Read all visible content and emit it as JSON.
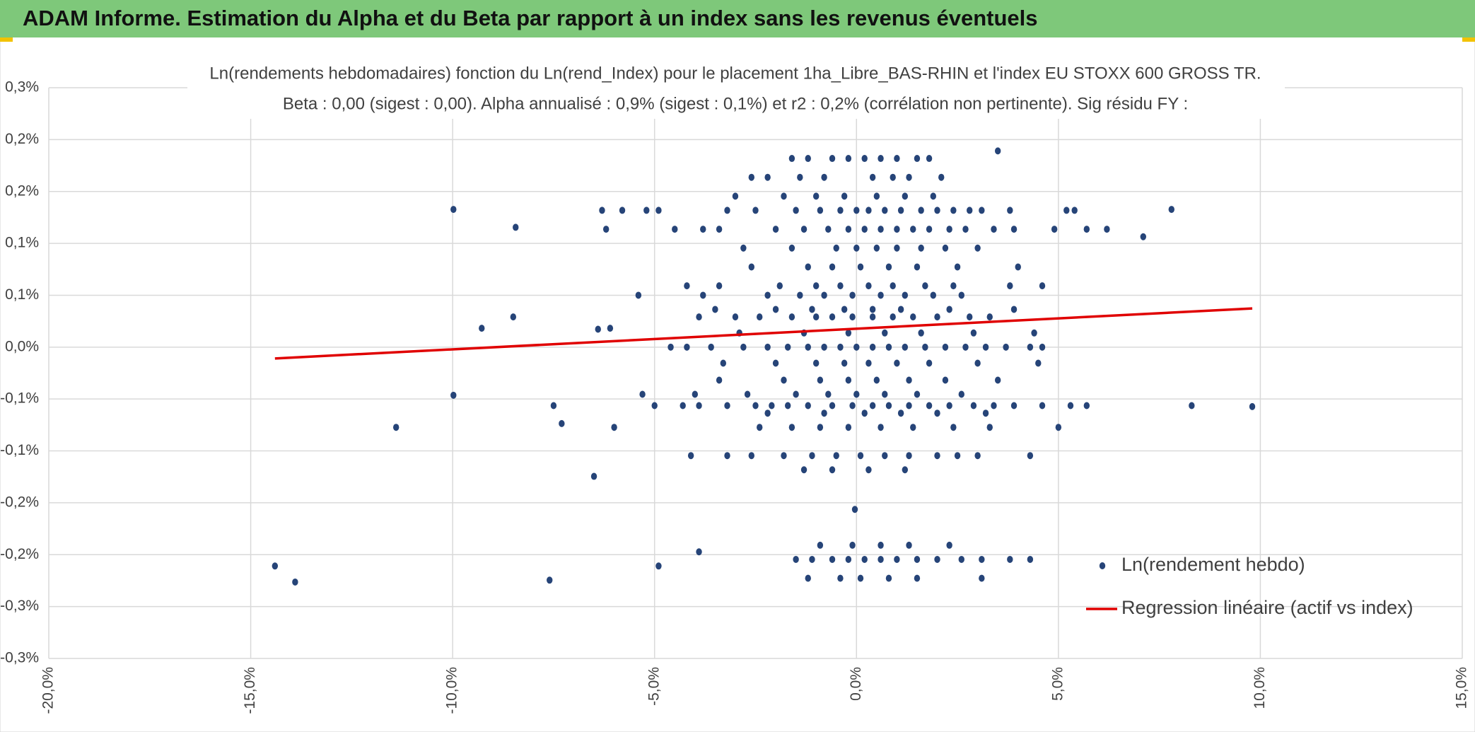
{
  "header": {
    "title": "ADAM Informe. Estimation du Alpha et du Beta par rapport à un index sans les revenus éventuels"
  },
  "chart_data": {
    "type": "scatter",
    "title": "Ln(rendements hebdomadaires) fonction du Ln(rend_Index) pour le placement 1ha_Libre_BAS-RHIN et l'index EU STOXX 600 GROSS TR.",
    "subtitle": "Beta : 0,00 (sigest : 0,00). Alpha annualisé : 0,9% (sigest : 0,1%) et r2 : 0,2% (corrélation non pertinente). Sig résidu FY :",
    "xlim": [
      -20,
      15
    ],
    "xticks": [
      {
        "value": -20,
        "label": "-20,0%"
      },
      {
        "value": -15,
        "label": "-15,0%"
      },
      {
        "value": -10,
        "label": "-10,0%"
      },
      {
        "value": -5,
        "label": "-5,0%"
      },
      {
        "value": 0,
        "label": "0,0%"
      },
      {
        "value": 5,
        "label": "5,0%"
      },
      {
        "value": 10,
        "label": "10,0%"
      },
      {
        "value": 15,
        "label": "15,0%"
      }
    ],
    "ylim": [
      -0.33,
      0.275
    ],
    "yticks": [
      {
        "value": 0.275,
        "label": "0,3%"
      },
      {
        "value": 0.22,
        "label": "0,2%"
      },
      {
        "value": 0.165,
        "label": "0,2%"
      },
      {
        "value": 0.11,
        "label": "0,1%"
      },
      {
        "value": 0.055,
        "label": "0,1%"
      },
      {
        "value": 0,
        "label": "0,0%"
      },
      {
        "value": -0.055,
        "label": "-0,1%"
      },
      {
        "value": -0.11,
        "label": "-0,1%"
      },
      {
        "value": -0.165,
        "label": "-0,2%"
      },
      {
        "value": -0.22,
        "label": "-0,2%"
      },
      {
        "value": -0.275,
        "label": "-0,3%"
      },
      {
        "value": -0.33,
        "label": "-0,3%"
      }
    ],
    "grid": true,
    "series": [
      {
        "name": "Ln(rendement hebdo)",
        "color": "#264478",
        "x": [
          -9.98,
          -8.44,
          -9.28,
          -8.5,
          -9.98,
          -11.4,
          -14.4,
          -13.9,
          -7.6,
          -6.5,
          -4.9,
          -3.9,
          -0.04,
          8.3,
          9.8,
          7.8,
          7.1,
          6.2,
          3.5,
          -6.4,
          -6.1,
          -5.4,
          -7.5,
          -7.3,
          -6.0,
          -5.3,
          -1.6,
          -1.2,
          -0.6,
          -0.2,
          0.2,
          0.6,
          1.0,
          1.5,
          1.8,
          -2.6,
          -2.2,
          -1.4,
          -0.8,
          0.4,
          0.9,
          1.3,
          2.1,
          -3.0,
          -1.8,
          -1.0,
          -0.3,
          0.5,
          1.2,
          1.9,
          -6.3,
          -5.8,
          -5.2,
          -4.9,
          -3.2,
          -2.5,
          -1.5,
          -0.9,
          -0.4,
          0,
          0.3,
          0.7,
          1.1,
          1.6,
          2.0,
          2.4,
          2.8,
          3.1,
          3.8,
          5.2,
          5.4,
          -6.2,
          -4.5,
          -3.8,
          -3.4,
          -2.0,
          -1.3,
          -0.7,
          -0.2,
          0.2,
          0.6,
          1.0,
          1.4,
          1.8,
          2.3,
          2.7,
          3.4,
          3.9,
          4.9,
          5.7,
          -2.8,
          -1.6,
          -0.5,
          0,
          0.5,
          1.0,
          1.6,
          2.2,
          3.0,
          -2.6,
          -1.2,
          -0.6,
          0.1,
          0.8,
          1.5,
          2.5,
          4.0,
          -4.2,
          -3.4,
          -1.9,
          -1.0,
          -0.4,
          0.3,
          0.9,
          1.7,
          2.4,
          3.8,
          4.6,
          -3.8,
          -2.2,
          -1.4,
          -0.8,
          -0.1,
          0.6,
          1.2,
          1.9,
          2.6,
          -3.5,
          -2.0,
          -1.1,
          -0.3,
          0.4,
          1.1,
          2.3,
          3.9,
          -3.9,
          -3.0,
          -2.4,
          -1.6,
          -1.0,
          -0.6,
          -0.1,
          0.4,
          0.9,
          1.4,
          2.0,
          2.8,
          3.3,
          -2.9,
          -1.3,
          -0.2,
          0.7,
          1.6,
          2.9,
          4.4,
          -4.6,
          -4.2,
          -3.6,
          -2.8,
          -2.2,
          -1.7,
          -1.2,
          -0.8,
          -0.4,
          0,
          0.4,
          0.8,
          1.2,
          1.7,
          2.2,
          2.7,
          3.2,
          3.7,
          4.3,
          4.6,
          -3.3,
          -2.0,
          -1.0,
          -0.3,
          0.3,
          1.0,
          1.8,
          3.0,
          4.5,
          -3.4,
          -1.8,
          -0.9,
          -0.2,
          0.5,
          1.3,
          2.2,
          3.5,
          -4.0,
          -2.7,
          -1.5,
          -0.7,
          0,
          0.7,
          1.5,
          2.6,
          -5.0,
          -4.3,
          -3.9,
          -3.2,
          -2.5,
          -2.1,
          -1.7,
          -1.2,
          -0.6,
          -0.1,
          0.4,
          0.8,
          1.3,
          1.8,
          2.3,
          2.9,
          3.4,
          3.9,
          4.6,
          5.3,
          5.7,
          -2.2,
          -0.8,
          0.2,
          1.1,
          2.0,
          3.2,
          -2.4,
          -1.6,
          -0.9,
          -0.2,
          0.6,
          1.4,
          2.4,
          3.3,
          5.0,
          -4.1,
          -3.2,
          -2.6,
          -1.8,
          -1.1,
          -0.5,
          0.1,
          0.7,
          1.3,
          2.0,
          2.5,
          3.0,
          4.3,
          -1.3,
          -0.6,
          0.3,
          1.2,
          -1.5,
          -1.1,
          -0.6,
          -0.2,
          0.2,
          0.6,
          1.0,
          1.5,
          2.0,
          2.6,
          3.1,
          3.8,
          4.3,
          -1.2,
          -0.4,
          0.1,
          0.8,
          1.5,
          3.1,
          -0.9,
          -0.1,
          0.6,
          1.3,
          2.3
        ],
        "values": [
          0.146,
          0.127,
          0.02,
          0.032,
          -0.051,
          -0.085,
          -0.232,
          -0.249,
          -0.247,
          -0.137,
          -0.232,
          -0.217,
          -0.172,
          -0.062,
          -0.063,
          0.146,
          0.117,
          0.125,
          0.208,
          0.019,
          0.02,
          0.055,
          -0.062,
          -0.081,
          -0.085,
          -0.05,
          0.2,
          0.2,
          0.2,
          0.2,
          0.2,
          0.2,
          0.2,
          0.2,
          0.2,
          0.18,
          0.18,
          0.18,
          0.18,
          0.18,
          0.18,
          0.18,
          0.18,
          0.16,
          0.16,
          0.16,
          0.16,
          0.16,
          0.16,
          0.16,
          0.145,
          0.145,
          0.145,
          0.145,
          0.145,
          0.145,
          0.145,
          0.145,
          0.145,
          0.145,
          0.145,
          0.145,
          0.145,
          0.145,
          0.145,
          0.145,
          0.145,
          0.145,
          0.145,
          0.145,
          0.145,
          0.125,
          0.125,
          0.125,
          0.125,
          0.125,
          0.125,
          0.125,
          0.125,
          0.125,
          0.125,
          0.125,
          0.125,
          0.125,
          0.125,
          0.125,
          0.125,
          0.125,
          0.125,
          0.125,
          0.105,
          0.105,
          0.105,
          0.105,
          0.105,
          0.105,
          0.105,
          0.105,
          0.105,
          0.085,
          0.085,
          0.085,
          0.085,
          0.085,
          0.085,
          0.085,
          0.085,
          0.065,
          0.065,
          0.065,
          0.065,
          0.065,
          0.065,
          0.065,
          0.065,
          0.065,
          0.065,
          0.065,
          0.055,
          0.055,
          0.055,
          0.055,
          0.055,
          0.055,
          0.055,
          0.055,
          0.055,
          0.04,
          0.04,
          0.04,
          0.04,
          0.04,
          0.04,
          0.04,
          0.04,
          0.032,
          0.032,
          0.032,
          0.032,
          0.032,
          0.032,
          0.032,
          0.032,
          0.032,
          0.032,
          0.032,
          0.032,
          0.032,
          0.015,
          0.015,
          0.015,
          0.015,
          0.015,
          0.015,
          0.015,
          0,
          0,
          0,
          0,
          0,
          0,
          0,
          0,
          0,
          0,
          0,
          0,
          0,
          0,
          0,
          0,
          0,
          0,
          0,
          0,
          -0.017,
          -0.017,
          -0.017,
          -0.017,
          -0.017,
          -0.017,
          -0.017,
          -0.017,
          -0.017,
          -0.035,
          -0.035,
          -0.035,
          -0.035,
          -0.035,
          -0.035,
          -0.035,
          -0.035,
          -0.05,
          -0.05,
          -0.05,
          -0.05,
          -0.05,
          -0.05,
          -0.05,
          -0.05,
          -0.062,
          -0.062,
          -0.062,
          -0.062,
          -0.062,
          -0.062,
          -0.062,
          -0.062,
          -0.062,
          -0.062,
          -0.062,
          -0.062,
          -0.062,
          -0.062,
          -0.062,
          -0.062,
          -0.062,
          -0.062,
          -0.062,
          -0.062,
          -0.062,
          -0.07,
          -0.07,
          -0.07,
          -0.07,
          -0.07,
          -0.07,
          -0.085,
          -0.085,
          -0.085,
          -0.085,
          -0.085,
          -0.085,
          -0.085,
          -0.085,
          -0.085,
          -0.115,
          -0.115,
          -0.115,
          -0.115,
          -0.115,
          -0.115,
          -0.115,
          -0.115,
          -0.115,
          -0.115,
          -0.115,
          -0.115,
          -0.115,
          -0.13,
          -0.13,
          -0.13,
          -0.13,
          -0.225,
          -0.225,
          -0.225,
          -0.225,
          -0.225,
          -0.225,
          -0.225,
          -0.225,
          -0.225,
          -0.225,
          -0.225,
          -0.225,
          -0.225,
          -0.245,
          -0.245,
          -0.245,
          -0.245,
          -0.245,
          -0.245,
          -0.21,
          -0.21,
          -0.21,
          -0.21,
          -0.21
        ]
      },
      {
        "name": "Regression linéaire (actif vs index)",
        "color": "#e00000",
        "type": "line",
        "x": [
          -14.4,
          9.8
        ],
        "values": [
          -0.012,
          0.041
        ]
      }
    ]
  }
}
